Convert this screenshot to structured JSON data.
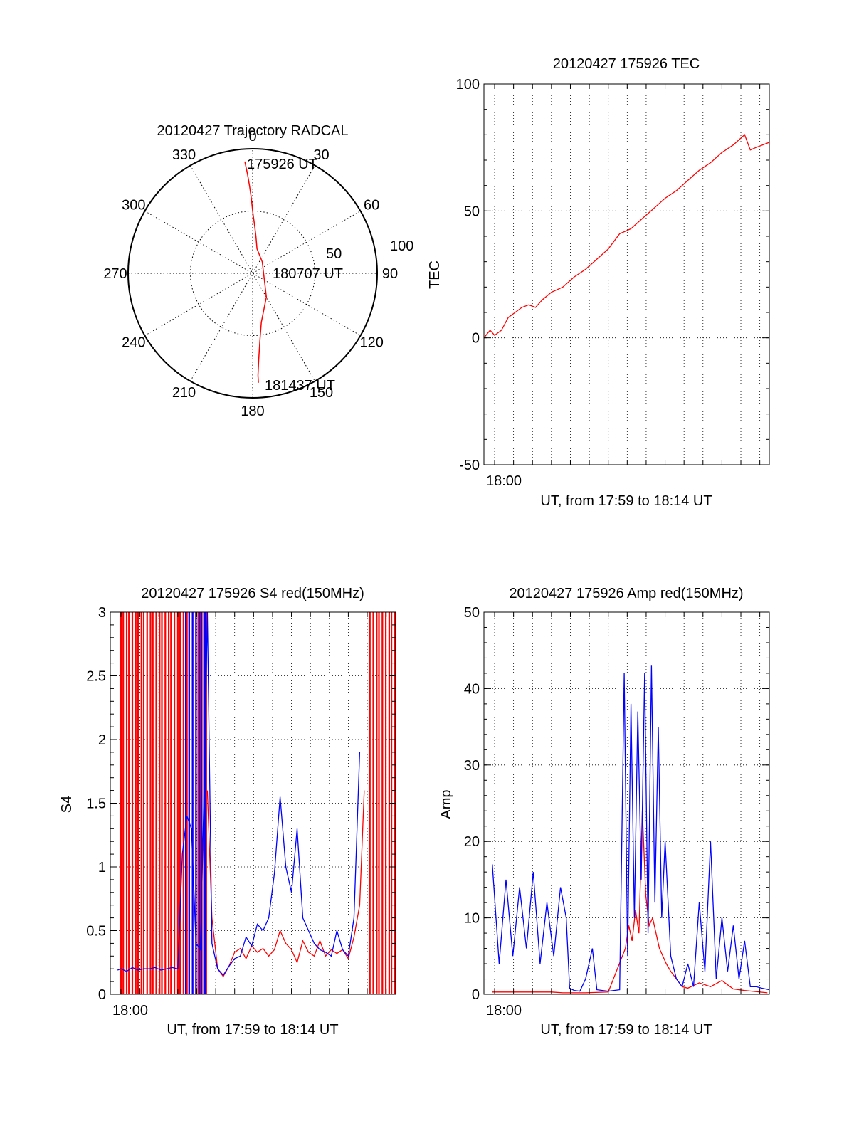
{
  "colors": {
    "red": "#ff0000",
    "blue": "#0000ff",
    "axis": "#000000",
    "grid": "#000000"
  },
  "chart_data": [
    {
      "type": "polar",
      "title": "20120427 Trajectory RADCAL",
      "angle_labels": [
        "0",
        "30",
        "60",
        "90",
        "120",
        "150",
        "180",
        "210",
        "240",
        "270",
        "300",
        "330"
      ],
      "radius_labels": [
        "50",
        "100"
      ],
      "rlim": [
        0,
        100
      ],
      "grid": true,
      "annotations": [
        "175926 UT",
        "180707 UT",
        "181437 UT"
      ],
      "series": [
        {
          "color": "red",
          "azimuth": [
            356,
            357,
            358,
            359,
            0,
            2,
            5,
            10,
            40,
            150,
            170,
            174,
            176,
            177,
            177
          ],
          "radius": [
            90,
            80,
            70,
            60,
            50,
            40,
            30,
            20,
            12,
            22,
            40,
            55,
            70,
            82,
            88
          ]
        }
      ]
    },
    {
      "type": "line",
      "title": "20120427 175926 TEC",
      "xlabel": "UT, from 17:59 to 18:14 UT",
      "ylabel": "TEC",
      "x_tick_labels": [
        "18:00"
      ],
      "y_tick_labels": [
        "-50",
        "0",
        "50",
        "100"
      ],
      "xlim": [
        17.9906,
        18.2417
      ],
      "ylim": [
        -50,
        100
      ],
      "grid": true,
      "series": [
        {
          "color": "red",
          "x": [
            17.9906,
            17.996,
            18.0,
            18.006,
            18.012,
            18.018,
            18.024,
            18.03,
            18.036,
            18.042,
            18.05,
            18.06,
            18.07,
            18.08,
            18.09,
            18.1,
            18.11,
            18.115,
            18.12,
            18.13,
            18.14,
            18.15,
            18.16,
            18.17,
            18.18,
            18.19,
            18.2,
            18.21,
            18.22,
            18.225,
            18.23,
            18.2417
          ],
          "y": [
            0,
            3,
            1,
            3,
            8,
            10,
            12,
            13,
            12,
            15,
            18,
            20,
            24,
            27,
            31,
            35,
            41,
            42,
            43,
            47,
            51,
            55,
            58,
            62,
            66,
            69,
            73,
            76,
            80,
            74,
            75,
            77
          ]
        }
      ]
    },
    {
      "type": "line",
      "title": "20120427 175926 S4 red(150MHz)",
      "xlabel": "UT, from 17:59 to 18:14 UT",
      "ylabel": "S4",
      "x_tick_labels": [
        "18:00"
      ],
      "y_tick_labels": [
        "0",
        "0.5",
        "1",
        "1.5",
        "2",
        "2.5",
        "3"
      ],
      "xlim": [
        17.9906,
        18.2417
      ],
      "ylim": [
        0,
        3
      ],
      "grid": true,
      "series": [
        {
          "color": "red",
          "x": [
            18.076,
            18.08,
            18.085,
            18.09,
            18.095,
            18.1,
            18.105,
            18.11,
            18.115,
            18.12,
            18.125,
            18.13,
            18.135,
            18.14,
            18.145,
            18.15,
            18.155,
            18.16,
            18.165,
            18.17,
            18.175,
            18.18,
            18.185,
            18.19,
            18.195,
            18.2,
            18.205,
            18.21,
            18.214
          ],
          "y": [
            1.6,
            0.6,
            0.2,
            0.14,
            0.22,
            0.33,
            0.36,
            0.28,
            0.38,
            0.33,
            0.36,
            0.3,
            0.35,
            0.5,
            0.4,
            0.35,
            0.25,
            0.42,
            0.33,
            0.3,
            0.42,
            0.3,
            0.35,
            0.32,
            0.35,
            0.28,
            0.45,
            0.7,
            1.6
          ]
        },
        {
          "color": "blue",
          "x": [
            17.997,
            18.0,
            18.005,
            18.01,
            18.015,
            18.02,
            18.025,
            18.03,
            18.035,
            18.04,
            18.045,
            18.05,
            18.054,
            18.058,
            18.062,
            18.066,
            18.07,
            18.074,
            18.076,
            18.08,
            18.085,
            18.09,
            18.095,
            18.1,
            18.105,
            18.11,
            18.115,
            18.12,
            18.125,
            18.13,
            18.135,
            18.14,
            18.145,
            18.15,
            18.155,
            18.16,
            18.165,
            18.17,
            18.175,
            18.18,
            18.185,
            18.19,
            18.195,
            18.2,
            18.205,
            18.21
          ],
          "y": [
            0.19,
            0.2,
            0.18,
            0.21,
            0.19,
            0.2,
            0.2,
            0.21,
            0.19,
            0.2,
            0.21,
            0.2,
            1.1,
            1.4,
            1.3,
            0.4,
            0.35,
            2.0,
            3.0,
            0.4,
            0.2,
            0.15,
            0.22,
            0.28,
            0.3,
            0.45,
            0.38,
            0.55,
            0.5,
            0.6,
            0.95,
            1.55,
            1.0,
            0.8,
            1.3,
            0.6,
            0.5,
            0.4,
            0.35,
            0.33,
            0.3,
            0.5,
            0.35,
            0.3,
            0.6,
            1.9
          ]
        }
      ],
      "red_spike_x": [
        18.0,
        18.002,
        18.005,
        18.007,
        18.01,
        18.013,
        18.015,
        18.018,
        18.02,
        18.023,
        18.026,
        18.028,
        18.031,
        18.034,
        18.036,
        18.039,
        18.042,
        18.044,
        18.047,
        18.05,
        18.052,
        18.055,
        18.058,
        18.06,
        18.063,
        18.066,
        18.068,
        18.07,
        18.073,
        18.075,
        18.219,
        18.222,
        18.225,
        18.227,
        18.23,
        18.233,
        18.236,
        18.238,
        18.241
      ],
      "blue_spike_x": [
        18.057,
        18.06,
        18.063,
        18.066,
        18.069,
        18.071,
        18.074
      ],
      "spike_height": 3
    },
    {
      "type": "line",
      "title": "20120427 175926 Amp red(150MHz)",
      "xlabel": "UT, from 17:59 to 18:14 UT",
      "ylabel": "Amp",
      "x_tick_labels": [
        "18:00"
      ],
      "y_tick_labels": [
        "0",
        "10",
        "20",
        "30",
        "40",
        "50"
      ],
      "xlim": [
        17.9906,
        18.2417
      ],
      "ylim": [
        0,
        50
      ],
      "grid": true,
      "series": [
        {
          "color": "red",
          "x": [
            17.998,
            18.05,
            18.06,
            18.08,
            18.1,
            18.115,
            18.118,
            18.121,
            18.124,
            18.127,
            18.13,
            18.133,
            18.136,
            18.139,
            18.142,
            18.145,
            18.148,
            18.151,
            18.155,
            18.16,
            18.165,
            18.17,
            18.18,
            18.19,
            18.2,
            18.21,
            18.22,
            18.24
          ],
          "y": [
            0.3,
            0.3,
            0.2,
            0.2,
            0.3,
            6,
            9,
            7,
            11,
            8,
            24,
            13,
            9,
            10,
            8,
            6,
            5,
            4,
            3,
            2,
            1,
            0.8,
            1.5,
            1,
            1.8,
            0.7,
            0.5,
            0.2
          ]
        },
        {
          "color": "blue",
          "x": [
            17.998,
            18.004,
            18.01,
            18.016,
            18.022,
            18.028,
            18.034,
            18.04,
            18.046,
            18.052,
            18.058,
            18.063,
            18.066,
            18.07,
            18.075,
            18.08,
            18.086,
            18.09,
            18.095,
            18.1,
            18.105,
            18.11,
            18.114,
            18.117,
            18.12,
            18.123,
            18.126,
            18.129,
            18.132,
            18.135,
            18.138,
            18.141,
            18.144,
            18.147,
            18.15,
            18.155,
            18.16,
            18.165,
            18.17,
            18.175,
            18.18,
            18.185,
            18.19,
            18.195,
            18.2,
            18.205,
            18.21,
            18.215,
            18.22,
            18.225,
            18.23,
            18.235,
            18.2417
          ],
          "y": [
            17,
            4,
            15,
            5,
            14,
            6,
            16,
            4,
            12,
            5,
            14,
            10,
            0.8,
            0.5,
            0.4,
            2,
            6,
            0.6,
            0.5,
            0.4,
            0.5,
            0.6,
            42,
            5,
            38,
            10,
            37,
            15,
            42,
            8,
            43,
            12,
            35,
            10,
            20,
            5,
            2,
            1,
            4,
            1,
            12,
            3,
            20,
            2,
            10,
            3,
            9,
            2,
            7,
            1,
            1,
            0.8,
            0.6
          ]
        }
      ]
    }
  ]
}
